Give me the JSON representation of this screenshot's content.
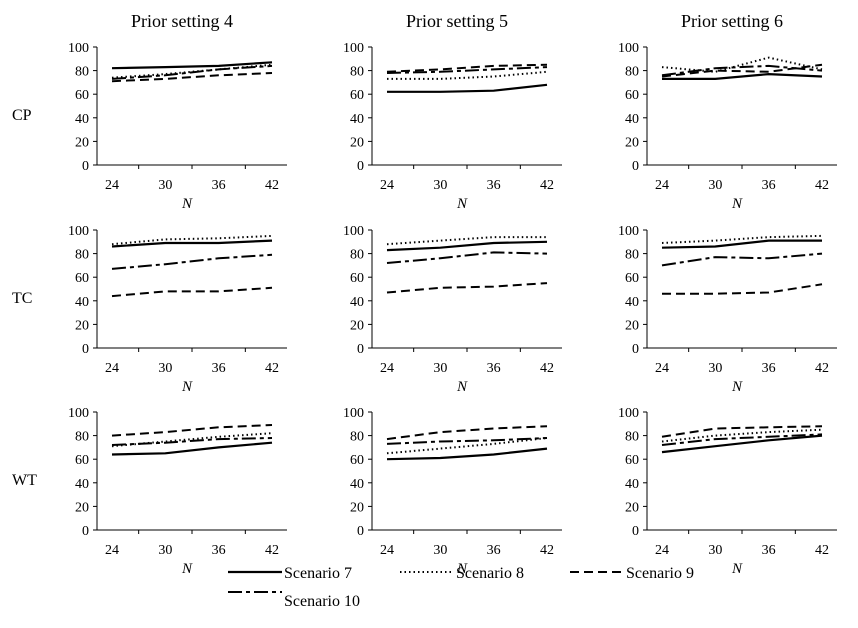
{
  "chart_data": {
    "type": "line",
    "column_titles": [
      "Prior setting 4",
      "Prior setting 5",
      "Prior setting 6"
    ],
    "row_labels": [
      "CP",
      "TC",
      "WT"
    ],
    "x": [
      24,
      30,
      36,
      42
    ],
    "xlabel": "N",
    "ylim": [
      0,
      100
    ],
    "yticks": [
      0,
      20,
      40,
      60,
      80,
      100
    ],
    "grid": false,
    "legend": {
      "placement": "bottom",
      "entries": [
        {
          "label": "Scenario 7",
          "style": "solid"
        },
        {
          "label": "Scenario 8",
          "style": "dotted"
        },
        {
          "label": "Scenario 9",
          "style": "dashed"
        },
        {
          "label": "Scenario 10",
          "style": "dashdot"
        }
      ]
    },
    "panels": [
      {
        "row": 0,
        "col": 0,
        "series": [
          {
            "name": "Scenario 7",
            "values": [
              82,
              83,
              84,
              87
            ]
          },
          {
            "name": "Scenario 8",
            "values": [
              74,
              77,
              81,
              85
            ]
          },
          {
            "name": "Scenario 9",
            "values": [
              71,
              73,
              76,
              78
            ]
          },
          {
            "name": "Scenario 10",
            "values": [
              73,
              76,
              81,
              84
            ]
          }
        ]
      },
      {
        "row": 0,
        "col": 1,
        "series": [
          {
            "name": "Scenario 7",
            "values": [
              62,
              62,
              63,
              68
            ]
          },
          {
            "name": "Scenario 8",
            "values": [
              73,
              73,
              75,
              79
            ]
          },
          {
            "name": "Scenario 9",
            "values": [
              79,
              81,
              84,
              85
            ]
          },
          {
            "name": "Scenario 10",
            "values": [
              78,
              79,
              81,
              83
            ]
          }
        ]
      },
      {
        "row": 0,
        "col": 2,
        "series": [
          {
            "name": "Scenario 7",
            "values": [
              73,
              73,
              77,
              75
            ]
          },
          {
            "name": "Scenario 8",
            "values": [
              83,
              79,
              91,
              81
            ]
          },
          {
            "name": "Scenario 9",
            "values": [
              75,
              80,
              79,
              85
            ]
          },
          {
            "name": "Scenario 10",
            "values": [
              76,
              82,
              84,
              80
            ]
          }
        ]
      },
      {
        "row": 1,
        "col": 0,
        "series": [
          {
            "name": "Scenario 7",
            "values": [
              86,
              89,
              89,
              91
            ]
          },
          {
            "name": "Scenario 8",
            "values": [
              88,
              92,
              93,
              95
            ]
          },
          {
            "name": "Scenario 9",
            "values": [
              44,
              48,
              48,
              51
            ]
          },
          {
            "name": "Scenario 10",
            "values": [
              67,
              71,
              76,
              79
            ]
          }
        ]
      },
      {
        "row": 1,
        "col": 1,
        "series": [
          {
            "name": "Scenario 7",
            "values": [
              83,
              85,
              89,
              90
            ]
          },
          {
            "name": "Scenario 8",
            "values": [
              88,
              91,
              94,
              94
            ]
          },
          {
            "name": "Scenario 9",
            "values": [
              47,
              51,
              52,
              55
            ]
          },
          {
            "name": "Scenario 10",
            "values": [
              72,
              76,
              81,
              80
            ]
          }
        ]
      },
      {
        "row": 1,
        "col": 2,
        "series": [
          {
            "name": "Scenario 7",
            "values": [
              85,
              86,
              91,
              91
            ]
          },
          {
            "name": "Scenario 8",
            "values": [
              89,
              91,
              94,
              95
            ]
          },
          {
            "name": "Scenario 9",
            "values": [
              46,
              46,
              47,
              54
            ]
          },
          {
            "name": "Scenario 10",
            "values": [
              70,
              77,
              76,
              80
            ]
          }
        ]
      },
      {
        "row": 2,
        "col": 0,
        "series": [
          {
            "name": "Scenario 7",
            "values": [
              64,
              65,
              70,
              74
            ]
          },
          {
            "name": "Scenario 8",
            "values": [
              71,
              75,
              79,
              82
            ]
          },
          {
            "name": "Scenario 9",
            "values": [
              80,
              83,
              87,
              89
            ]
          },
          {
            "name": "Scenario 10",
            "values": [
              72,
              74,
              77,
              78
            ]
          }
        ]
      },
      {
        "row": 2,
        "col": 1,
        "series": [
          {
            "name": "Scenario 7",
            "values": [
              60,
              61,
              64,
              69
            ]
          },
          {
            "name": "Scenario 8",
            "values": [
              65,
              69,
              73,
              78
            ]
          },
          {
            "name": "Scenario 9",
            "values": [
              77,
              83,
              86,
              88
            ]
          },
          {
            "name": "Scenario 10",
            "values": [
              73,
              75,
              76,
              78
            ]
          }
        ]
      },
      {
        "row": 2,
        "col": 2,
        "series": [
          {
            "name": "Scenario 7",
            "values": [
              66,
              71,
              76,
              80
            ]
          },
          {
            "name": "Scenario 8",
            "values": [
              75,
              80,
              83,
              85
            ]
          },
          {
            "name": "Scenario 9",
            "values": [
              79,
              86,
              87,
              88
            ]
          },
          {
            "name": "Scenario 10",
            "values": [
              72,
              77,
              79,
              81
            ]
          }
        ]
      }
    ]
  }
}
